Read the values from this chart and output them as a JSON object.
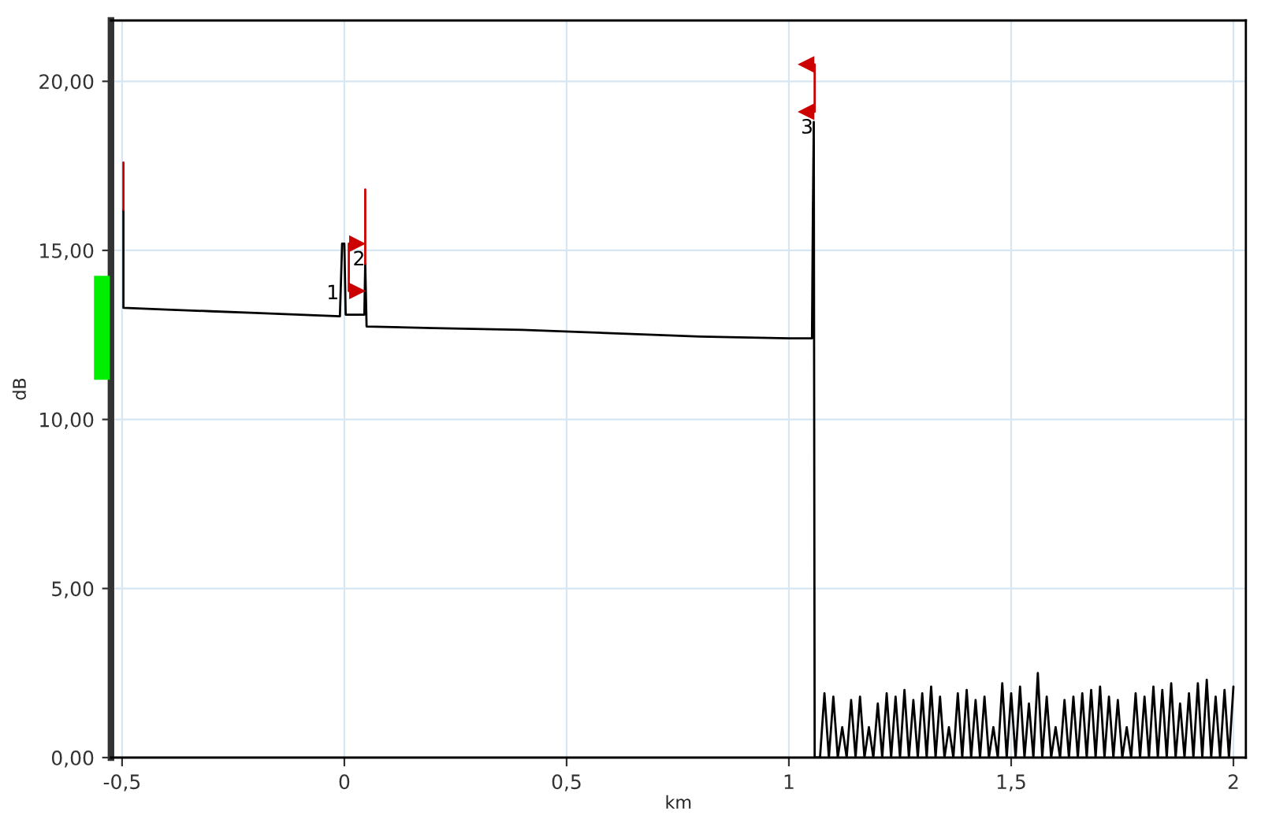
{
  "chart_data": {
    "type": "line",
    "xlabel": "km",
    "ylabel": "dB",
    "xlim": [
      -0.525,
      2.028
    ],
    "ylim": [
      0,
      21.8
    ],
    "xticks": [
      {
        "value": -0.5,
        "label": "-0,5"
      },
      0,
      {
        "value": 0.5,
        "label": "0,5"
      },
      1,
      {
        "value": 1.5,
        "label": "1,5"
      },
      2
    ],
    "yticks": [
      {
        "value": 0,
        "label": "0,00"
      },
      {
        "value": 5,
        "label": "5,00"
      },
      {
        "value": 10,
        "label": "10,00"
      },
      {
        "value": 15,
        "label": "15,00"
      },
      {
        "value": 20,
        "label": "20,00"
      }
    ],
    "grid": true,
    "legend": false,
    "annotations": [
      {
        "text": "1",
        "x": -0.012,
        "y": 14.0
      },
      {
        "text": "2",
        "x": 0.047,
        "y": 15.0
      },
      {
        "text": "3",
        "x": 1.055,
        "y": 18.9
      }
    ],
    "series": [
      {
        "color": "#000000",
        "x": [
          -0.497,
          -0.497,
          -0.4,
          -0.3,
          -0.2,
          -0.1,
          -0.01,
          -0.005,
          0.0,
          0.003,
          0.045,
          0.047,
          0.05,
          0.2,
          0.4,
          0.6,
          0.8,
          1.0,
          1.052,
          1.054,
          1.056,
          1.058,
          1.07,
          1.08,
          1.09,
          1.1,
          1.11,
          1.12,
          1.13,
          1.14,
          1.15,
          1.16,
          1.17,
          1.18,
          1.19,
          1.2,
          1.21,
          1.22,
          1.23,
          1.24,
          1.25,
          1.26,
          1.27,
          1.28,
          1.29,
          1.3,
          1.31,
          1.32,
          1.33,
          1.34,
          1.35,
          1.36,
          1.37,
          1.38,
          1.39,
          1.4,
          1.41,
          1.42,
          1.43,
          1.44,
          1.45,
          1.46,
          1.47,
          1.48,
          1.49,
          1.5,
          1.51,
          1.52,
          1.53,
          1.54,
          1.55,
          1.56,
          1.57,
          1.58,
          1.59,
          1.6,
          1.61,
          1.62,
          1.63,
          1.64,
          1.65,
          1.66,
          1.67,
          1.68,
          1.69,
          1.7,
          1.71,
          1.72,
          1.73,
          1.74,
          1.75,
          1.76,
          1.77,
          1.78,
          1.79,
          1.8,
          1.81,
          1.82,
          1.83,
          1.84,
          1.85,
          1.86,
          1.87,
          1.88,
          1.89,
          1.9,
          1.91,
          1.92,
          1.93,
          1.94,
          1.95,
          1.96,
          1.97,
          1.98,
          1.99,
          2.0
        ],
        "values": [
          16.2,
          13.3,
          13.25,
          13.2,
          13.15,
          13.1,
          13.05,
          15.2,
          15.2,
          13.1,
          13.1,
          14.6,
          12.75,
          12.7,
          12.65,
          12.55,
          12.45,
          12.4,
          12.4,
          16.1,
          18.8,
          0,
          0,
          1.9,
          0,
          1.8,
          0,
          0.9,
          0,
          1.7,
          0,
          1.8,
          0,
          0.9,
          0,
          1.6,
          0,
          1.9,
          0,
          1.8,
          0,
          2.0,
          0,
          1.7,
          0,
          1.9,
          0,
          2.1,
          0,
          1.8,
          0,
          0.9,
          0,
          1.9,
          0,
          2.0,
          0,
          1.7,
          0,
          1.8,
          0,
          0.9,
          0,
          2.2,
          0,
          1.9,
          0,
          2.1,
          0,
          1.6,
          0,
          2.5,
          0,
          1.8,
          0,
          0.9,
          0,
          1.7,
          0,
          1.8,
          0,
          1.9,
          0,
          2.0,
          0,
          2.1,
          0,
          1.8,
          0,
          1.7,
          0,
          0.9,
          0,
          1.9,
          0,
          1.8,
          0,
          2.1,
          0,
          2.0,
          0,
          2.2,
          0,
          1.6,
          0,
          1.9,
          0,
          2.2,
          0,
          2.3,
          0,
          1.8,
          0,
          2.0,
          0,
          2.1
        ]
      },
      {
        "color": "#cc0000",
        "x": [
          -0.497,
          -0.497,
          -0.49,
          0.047,
          0.047
        ],
        "values": [
          16.2,
          17.6,
          null,
          14.6,
          16.8
        ]
      },
      {
        "color": "#cc0000",
        "marker": "triangle",
        "x": [
          0.028,
          0.01,
          0.01,
          0.028,
          0.03,
          1.04,
          1.058,
          1.058,
          1.04
        ],
        "values": [
          15.2,
          15.2,
          13.8,
          13.8,
          null,
          20.5,
          20.5,
          19.1,
          19.1
        ]
      }
    ]
  }
}
